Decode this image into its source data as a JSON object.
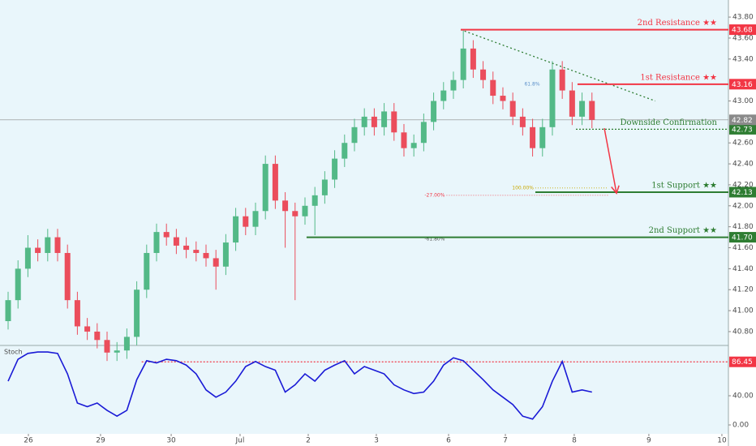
{
  "chart_data": [
    {
      "type": "candlestick",
      "x": [
        0,
        1,
        2,
        3,
        4,
        5,
        6,
        7,
        8,
        9,
        10,
        11,
        12,
        13,
        14,
        15,
        16,
        17,
        18,
        19,
        20,
        21,
        22,
        23,
        24,
        25,
        26,
        27,
        28,
        29,
        30,
        31,
        32,
        33,
        34,
        35,
        36,
        37,
        38,
        39,
        40,
        41,
        42,
        43,
        44,
        45,
        46,
        47,
        48,
        49,
        50,
        51,
        52,
        53,
        54,
        55,
        56,
        57,
        58,
        59
      ],
      "open": [
        40.9,
        41.1,
        41.4,
        41.6,
        41.55,
        41.7,
        41.55,
        41.1,
        40.85,
        40.8,
        40.72,
        40.6,
        40.62,
        40.75,
        41.2,
        41.55,
        41.75,
        41.7,
        41.62,
        41.58,
        41.55,
        41.5,
        41.42,
        41.65,
        41.9,
        41.8,
        41.95,
        42.4,
        42.05,
        41.95,
        41.9,
        42.0,
        42.1,
        42.25,
        42.45,
        42.6,
        42.75,
        42.85,
        42.75,
        42.9,
        42.7,
        42.55,
        42.6,
        42.8,
        43.0,
        43.1,
        43.2,
        43.5,
        43.3,
        43.2,
        43.05,
        43.0,
        42.85,
        42.75,
        42.55,
        42.75,
        43.3,
        43.1,
        42.85,
        43.0
      ],
      "high": [
        41.18,
        41.48,
        41.72,
        41.68,
        41.78,
        41.78,
        41.63,
        41.18,
        40.93,
        40.88,
        40.8,
        40.7,
        40.83,
        41.28,
        41.63,
        41.83,
        41.83,
        41.78,
        41.7,
        41.66,
        41.63,
        41.58,
        41.73,
        41.98,
        41.98,
        42.03,
        42.48,
        42.48,
        42.13,
        42.03,
        42.08,
        42.18,
        42.33,
        42.53,
        42.68,
        42.83,
        42.93,
        42.93,
        42.98,
        42.98,
        42.78,
        42.68,
        42.88,
        43.08,
        43.18,
        43.28,
        43.68,
        43.58,
        43.38,
        43.28,
        43.13,
        43.08,
        42.93,
        42.83,
        42.83,
        43.38,
        43.38,
        43.18,
        43.08,
        43.08
      ],
      "low": [
        40.82,
        41.02,
        41.32,
        41.47,
        41.47,
        41.47,
        41.02,
        40.77,
        40.72,
        40.64,
        40.52,
        40.52,
        40.54,
        40.67,
        41.12,
        41.47,
        41.62,
        41.54,
        41.5,
        41.47,
        41.42,
        41.2,
        41.34,
        41.57,
        41.72,
        41.72,
        41.87,
        41.97,
        41.6,
        41.1,
        41.82,
        41.72,
        42.02,
        42.17,
        42.37,
        42.52,
        42.67,
        42.67,
        42.67,
        42.62,
        42.47,
        42.47,
        42.52,
        42.72,
        42.92,
        43.02,
        43.12,
        43.22,
        43.12,
        42.97,
        42.92,
        42.77,
        42.67,
        42.47,
        42.47,
        42.67,
        43.02,
        42.77,
        42.77,
        42.74
      ],
      "close": [
        41.1,
        41.4,
        41.6,
        41.55,
        41.7,
        41.55,
        41.1,
        40.85,
        40.8,
        40.72,
        40.6,
        40.62,
        40.75,
        41.2,
        41.55,
        41.75,
        41.7,
        41.62,
        41.58,
        41.55,
        41.5,
        41.42,
        41.65,
        41.9,
        41.8,
        41.95,
        42.4,
        42.05,
        41.95,
        41.9,
        42.0,
        42.1,
        42.25,
        42.45,
        42.6,
        42.75,
        42.85,
        42.75,
        42.9,
        42.7,
        42.55,
        42.6,
        42.8,
        43.0,
        43.1,
        43.2,
        43.5,
        43.3,
        43.2,
        43.05,
        43.0,
        42.85,
        42.75,
        42.55,
        42.75,
        43.3,
        43.1,
        42.85,
        43.0,
        42.82
      ],
      "up_color": "#53b987",
      "down_color": "#eb4d5c",
      "xlim": [
        -0.82,
        72.79
      ],
      "ylim": [
        40.668,
        43.963
      ],
      "yticks": [
        {
          "value": 43.8,
          "label": "43.80"
        },
        {
          "value": 43.6,
          "label": "43.60"
        },
        {
          "value": 43.4,
          "label": "43.40"
        },
        {
          "value": 43.0,
          "label": "43.00"
        },
        {
          "value": 42.6,
          "label": "42.60"
        },
        {
          "value": 42.4,
          "label": "42.40"
        },
        {
          "value": 42.2,
          "label": "42.20"
        },
        {
          "value": 42.0,
          "label": "42.00"
        },
        {
          "value": 41.8,
          "label": "41.80"
        },
        {
          "value": 41.6,
          "label": "41.60"
        },
        {
          "value": 41.4,
          "label": "41.40"
        },
        {
          "value": 41.2,
          "label": "41.20"
        },
        {
          "value": 41.0,
          "label": "41.00"
        },
        {
          "value": 40.8,
          "label": "40.80"
        }
      ],
      "current_price": {
        "value": 42.82,
        "label": "42.82",
        "color": "#8a8a8a"
      },
      "levels": [
        {
          "name": "2nd Resistance ★★",
          "value": 43.68,
          "label": "43.68",
          "from": 45.74,
          "color": "#f23645",
          "style": "solid"
        },
        {
          "name": "1st Resistance ★★",
          "value": 43.16,
          "label": "43.16",
          "from": 57.54,
          "color": "#f23645",
          "style": "solid"
        },
        {
          "name": "Downside Confirmation",
          "value": 42.73,
          "label": "42.73",
          "from": 57.38,
          "color": "#2e7d32",
          "style": "dotted"
        },
        {
          "name": "1st Support ★★",
          "value": 42.13,
          "label": "42.13",
          "from": 53.28,
          "color": "#2e7d32",
          "style": "solid"
        },
        {
          "name": "2nd Support ★★",
          "value": 41.7,
          "label": "41.70",
          "from": 30.16,
          "color": "#2e7d32",
          "style": "solid"
        }
      ],
      "fibs": [
        {
          "label": "61.8%",
          "value": 43.16,
          "from": 53.9,
          "color": "#5b8fc9",
          "line": false
        },
        {
          "label": "100.00%",
          "value": 42.17,
          "from": 53.28,
          "color": "#c9a800",
          "line": true
        },
        {
          "label": "-27.00%",
          "value": 42.1,
          "from": 44.3,
          "color": "#f23645",
          "line": true
        },
        {
          "label": "-61.80%",
          "value": 41.68,
          "from": 44.3,
          "color": "#555555",
          "line": false
        }
      ],
      "trendline": {
        "from": [
          45.74,
          43.68
        ],
        "to": [
          65.4,
          43.0
        ],
        "color": "#2e7d32"
      },
      "arrow": {
        "from": [
          60.25,
          42.74
        ],
        "to": [
          61.48,
          42.12
        ],
        "color": "#f23645"
      }
    },
    {
      "type": "line",
      "title": "Stoch",
      "x": [
        0,
        1,
        2,
        3,
        4,
        5,
        6,
        7,
        8,
        9,
        10,
        11,
        12,
        13,
        14,
        15,
        16,
        17,
        18,
        19,
        20,
        21,
        22,
        23,
        24,
        25,
        26,
        27,
        28,
        29,
        30,
        31,
        32,
        33,
        34,
        35,
        36,
        37,
        38,
        39,
        40,
        41,
        42,
        43,
        44,
        45,
        46,
        47,
        48,
        49,
        50,
        51,
        52,
        53,
        54,
        55,
        56,
        57,
        58,
        59
      ],
      "values": [
        60,
        90,
        98,
        100,
        100,
        98,
        70,
        30,
        25,
        30,
        20,
        12,
        20,
        62,
        88,
        85,
        90,
        88,
        82,
        70,
        48,
        38,
        45,
        60,
        80,
        87,
        80,
        75,
        45,
        55,
        70,
        60,
        75,
        82,
        88,
        70,
        80,
        75,
        70,
        55,
        48,
        43,
        45,
        60,
        82,
        92,
        88,
        75,
        62,
        48,
        38,
        28,
        12,
        8,
        25,
        60,
        87,
        45,
        48,
        45
      ],
      "color": "#1a1ad6",
      "xlim": [
        -0.82,
        72.79
      ],
      "ylim": [
        -12.2,
        106.7
      ],
      "yticks": [
        {
          "value": 40,
          "label": "40.00"
        },
        {
          "value": 0,
          "label": "0.00"
        }
      ],
      "level": {
        "value": 86.45,
        "label": "86.45",
        "from": 13.5,
        "color": "#f23645"
      },
      "xticks": [
        {
          "value": 2.05,
          "label": "26"
        },
        {
          "value": 9.34,
          "label": "29"
        },
        {
          "value": 16.48,
          "label": "30"
        },
        {
          "value": 23.44,
          "label": "Jul"
        },
        {
          "value": 30.33,
          "label": "2"
        },
        {
          "value": 37.21,
          "label": "3"
        },
        {
          "value": 44.51,
          "label": "6"
        },
        {
          "value": 50.25,
          "label": "7"
        },
        {
          "value": 57.21,
          "label": "8"
        },
        {
          "value": 64.75,
          "label": "9"
        },
        {
          "value": 72.13,
          "label": "10"
        }
      ]
    }
  ]
}
